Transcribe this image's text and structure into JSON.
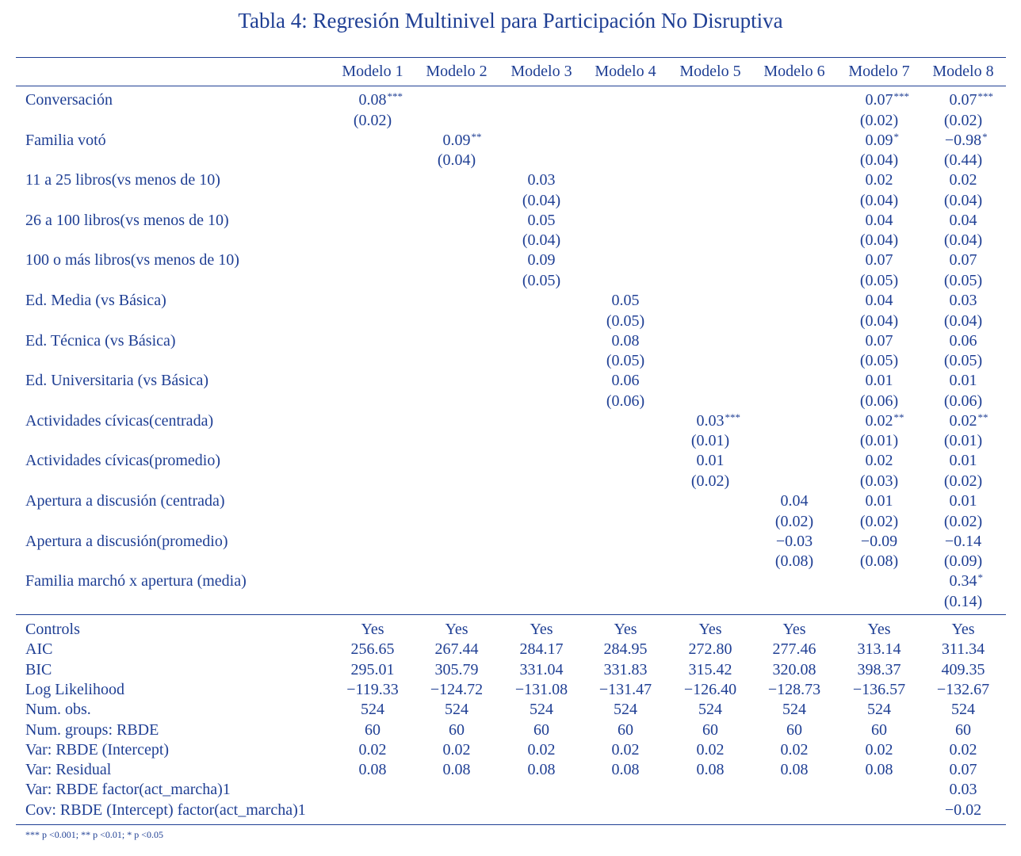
{
  "title": "Tabla 4:  Regresión Multinivel para Participación No Disruptiva",
  "columns": [
    "Modelo 1",
    "Modelo 2",
    "Modelo 3",
    "Modelo 4",
    "Modelo 5",
    "Modelo 6",
    "Modelo 7",
    "Modelo 8"
  ],
  "coefficients": [
    {
      "label": "Conversación",
      "est": [
        "0.08",
        "",
        "",
        "",
        "",
        "",
        "0.07",
        "0.07"
      ],
      "stars": [
        "***",
        "",
        "",
        "",
        "",
        "",
        "***",
        "***"
      ],
      "se": [
        "(0.02)",
        "",
        "",
        "",
        "",
        "",
        "(0.02)",
        "(0.02)"
      ]
    },
    {
      "label": "Familia votó",
      "est": [
        "",
        "0.09",
        "",
        "",
        "",
        "",
        "0.09",
        "−0.98"
      ],
      "stars": [
        "",
        "**",
        "",
        "",
        "",
        "",
        "*",
        "*"
      ],
      "se": [
        "",
        "(0.04)",
        "",
        "",
        "",
        "",
        "(0.04)",
        "(0.44)"
      ]
    },
    {
      "label": "11 a 25 libros(vs menos de 10)",
      "est": [
        "",
        "",
        "0.03",
        "",
        "",
        "",
        "0.02",
        "0.02"
      ],
      "stars": [
        "",
        "",
        "",
        "",
        "",
        "",
        "",
        ""
      ],
      "se": [
        "",
        "",
        "(0.04)",
        "",
        "",
        "",
        "(0.04)",
        "(0.04)"
      ]
    },
    {
      "label": "26 a 100 libros(vs menos de 10)",
      "est": [
        "",
        "",
        "0.05",
        "",
        "",
        "",
        "0.04",
        "0.04"
      ],
      "stars": [
        "",
        "",
        "",
        "",
        "",
        "",
        "",
        ""
      ],
      "se": [
        "",
        "",
        "(0.04)",
        "",
        "",
        "",
        "(0.04)",
        "(0.04)"
      ]
    },
    {
      "label": "100 o más libros(vs menos de 10)",
      "est": [
        "",
        "",
        "0.09",
        "",
        "",
        "",
        "0.07",
        "0.07"
      ],
      "stars": [
        "",
        "",
        "",
        "",
        "",
        "",
        "",
        ""
      ],
      "se": [
        "",
        "",
        "(0.05)",
        "",
        "",
        "",
        "(0.05)",
        "(0.05)"
      ]
    },
    {
      "label": "Ed. Media (vs Básica)",
      "est": [
        "",
        "",
        "",
        "0.05",
        "",
        "",
        "0.04",
        "0.03"
      ],
      "stars": [
        "",
        "",
        "",
        "",
        "",
        "",
        "",
        ""
      ],
      "se": [
        "",
        "",
        "",
        "(0.05)",
        "",
        "",
        "(0.04)",
        "(0.04)"
      ]
    },
    {
      "label": "Ed. Técnica (vs Básica)",
      "est": [
        "",
        "",
        "",
        "0.08",
        "",
        "",
        "0.07",
        "0.06"
      ],
      "stars": [
        "",
        "",
        "",
        "",
        "",
        "",
        "",
        ""
      ],
      "se": [
        "",
        "",
        "",
        "(0.05)",
        "",
        "",
        "(0.05)",
        "(0.05)"
      ]
    },
    {
      "label": "Ed. Universitaria (vs Básica)",
      "est": [
        "",
        "",
        "",
        "0.06",
        "",
        "",
        "0.01",
        "0.01"
      ],
      "stars": [
        "",
        "",
        "",
        "",
        "",
        "",
        "",
        ""
      ],
      "se": [
        "",
        "",
        "",
        "(0.06)",
        "",
        "",
        "(0.06)",
        "(0.06)"
      ]
    },
    {
      "label": "Actividades cívicas(centrada)",
      "est": [
        "",
        "",
        "",
        "",
        "0.03",
        "",
        "0.02",
        "0.02"
      ],
      "stars": [
        "",
        "",
        "",
        "",
        "***",
        "",
        "**",
        "**"
      ],
      "se": [
        "",
        "",
        "",
        "",
        "(0.01)",
        "",
        "(0.01)",
        "(0.01)"
      ]
    },
    {
      "label": "Actividades cívicas(promedio)",
      "est": [
        "",
        "",
        "",
        "",
        "0.01",
        "",
        "0.02",
        "0.01"
      ],
      "stars": [
        "",
        "",
        "",
        "",
        "",
        "",
        "",
        ""
      ],
      "se": [
        "",
        "",
        "",
        "",
        "(0.02)",
        "",
        "(0.03)",
        "(0.02)"
      ]
    },
    {
      "label": "Apertura a discusión (centrada)",
      "est": [
        "",
        "",
        "",
        "",
        "",
        "0.04",
        "0.01",
        "0.01"
      ],
      "stars": [
        "",
        "",
        "",
        "",
        "",
        "",
        "",
        ""
      ],
      "se": [
        "",
        "",
        "",
        "",
        "",
        "(0.02)",
        "(0.02)",
        "(0.02)"
      ]
    },
    {
      "label": "Apertura a discusión(promedio)",
      "est": [
        "",
        "",
        "",
        "",
        "",
        "−0.03",
        "−0.09",
        "−0.14"
      ],
      "stars": [
        "",
        "",
        "",
        "",
        "",
        "",
        "",
        ""
      ],
      "se": [
        "",
        "",
        "",
        "",
        "",
        "(0.08)",
        "(0.08)",
        "(0.09)"
      ]
    },
    {
      "label": "Familia marchó x apertura (media)",
      "est": [
        "",
        "",
        "",
        "",
        "",
        "",
        "",
        "0.34"
      ],
      "stars": [
        "",
        "",
        "",
        "",
        "",
        "",
        "",
        "*"
      ],
      "se": [
        "",
        "",
        "",
        "",
        "",
        "",
        "",
        "(0.14)"
      ]
    }
  ],
  "stats": [
    {
      "label": "Controls",
      "values": [
        "Yes",
        "Yes",
        "Yes",
        "Yes",
        "Yes",
        "Yes",
        "Yes",
        "Yes"
      ]
    },
    {
      "label": "AIC",
      "values": [
        "256.65",
        "267.44",
        "284.17",
        "284.95",
        "272.80",
        "277.46",
        "313.14",
        "311.34"
      ]
    },
    {
      "label": "BIC",
      "values": [
        "295.01",
        "305.79",
        "331.04",
        "331.83",
        "315.42",
        "320.08",
        "398.37",
        "409.35"
      ]
    },
    {
      "label": "Log Likelihood",
      "values": [
        "−119.33",
        "−124.72",
        "−131.08",
        "−131.47",
        "−126.40",
        "−128.73",
        "−136.57",
        "−132.67"
      ]
    },
    {
      "label": "Num. obs.",
      "values": [
        "524",
        "524",
        "524",
        "524",
        "524",
        "524",
        "524",
        "524"
      ]
    },
    {
      "label": "Num. groups: RBDE",
      "values": [
        "60",
        "60",
        "60",
        "60",
        "60",
        "60",
        "60",
        "60"
      ]
    },
    {
      "label": "Var: RBDE (Intercept)",
      "values": [
        "0.02",
        "0.02",
        "0.02",
        "0.02",
        "0.02",
        "0.02",
        "0.02",
        "0.02"
      ]
    },
    {
      "label": "Var: Residual",
      "values": [
        "0.08",
        "0.08",
        "0.08",
        "0.08",
        "0.08",
        "0.08",
        "0.08",
        "0.07"
      ]
    },
    {
      "label": "Var: RBDE factor(act_marcha)1",
      "values": [
        "",
        "",
        "",
        "",
        "",
        "",
        "",
        "0.03"
      ]
    },
    {
      "label": "Cov: RBDE (Intercept) factor(act_marcha)1",
      "values": [
        "",
        "",
        "",
        "",
        "",
        "",
        "",
        "−0.02"
      ]
    }
  ],
  "footnote": "*** p <0.001; ** p <0.01; * p <0.05"
}
